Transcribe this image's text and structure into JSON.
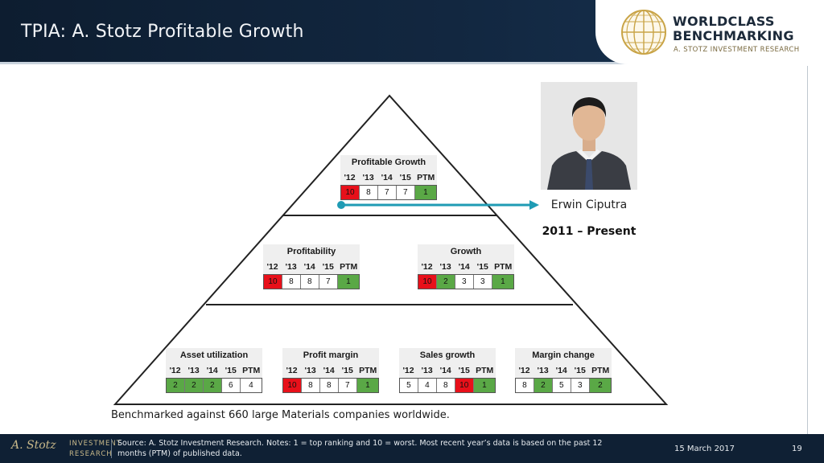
{
  "header": {
    "title": "TPIA: A. Stotz Profitable Growth"
  },
  "logo": {
    "line1": "WORLDCLASS",
    "line2": "BENCHMARKING",
    "line3": "A. STOTZ INVESTMENT RESEARCH",
    "globe_icon": "globe-icon",
    "gold": "#c9a447"
  },
  "colors": {
    "bad": "#e8101a",
    "good": "#5aa846",
    "connector": "#1f9bb4"
  },
  "column_headers": [
    "'12",
    "'13",
    "'14",
    "'15",
    "PTM"
  ],
  "boxes": {
    "profitable_growth": {
      "title": "Profitable Growth",
      "values": [
        "10",
        "8",
        "7",
        "7",
        "1"
      ],
      "colors": [
        "red",
        "",
        "",
        "",
        "green"
      ]
    },
    "profitability": {
      "title": "Profitability",
      "values": [
        "10",
        "8",
        "8",
        "7",
        "1"
      ],
      "colors": [
        "red",
        "",
        "",
        "",
        "green"
      ]
    },
    "growth": {
      "title": "Growth",
      "values": [
        "10",
        "2",
        "3",
        "3",
        "1"
      ],
      "colors": [
        "red",
        "green",
        "",
        "",
        "green"
      ]
    },
    "asset_utilization": {
      "title": "Asset utilization",
      "values": [
        "2",
        "2",
        "2",
        "6",
        "4"
      ],
      "colors": [
        "green",
        "green",
        "green",
        "",
        ""
      ]
    },
    "profit_margin": {
      "title": "Profit margin",
      "values": [
        "10",
        "8",
        "8",
        "7",
        "1"
      ],
      "colors": [
        "red",
        "",
        "",
        "",
        "green"
      ]
    },
    "sales_growth": {
      "title": "Sales growth",
      "values": [
        "5",
        "4",
        "8",
        "10",
        "1"
      ],
      "colors": [
        "",
        "",
        "",
        "red",
        "green"
      ]
    },
    "margin_change": {
      "title": "Margin change",
      "values": [
        "8",
        "2",
        "5",
        "3",
        "2"
      ],
      "colors": [
        "",
        "green",
        "",
        "",
        "green"
      ]
    }
  },
  "ceo": {
    "name": "Erwin Ciputra",
    "tenure": "2011 – Present",
    "photo_icon": "person-photo-icon"
  },
  "note": "Benchmarked against 660 large Materials companies worldwide.",
  "footer": {
    "signature": "A. Stotz",
    "brand_line1": "INVESTMENT",
    "brand_line2": "RESEARCH",
    "source": "Source: A. Stotz Investment Research. Notes:  1 = top ranking and 10 = worst. Most recent year’s data is based on the past 12 months (PTM) of published data.",
    "date": "15 March 2017",
    "page": "19"
  }
}
